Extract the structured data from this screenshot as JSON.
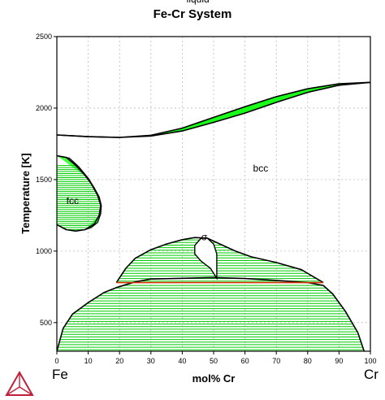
{
  "chart_data": {
    "type": "phase-diagram",
    "title": "Fe-Cr System",
    "xlabel": "mol% Cr",
    "ylabel": "Temperature [K]",
    "xlim": [
      0,
      100
    ],
    "ylim": [
      300,
      2500
    ],
    "x_ticks": [
      "0",
      "10",
      "20",
      "30",
      "40",
      "50",
      "60",
      "70",
      "80",
      "90",
      "100"
    ],
    "y_ticks": [
      "500",
      "1000",
      "1500",
      "2000",
      "2500"
    ],
    "x_tick_values": [
      0,
      10,
      20,
      30,
      40,
      50,
      60,
      70,
      80,
      90,
      100
    ],
    "y_tick_values": [
      500,
      1000,
      1500,
      2000,
      2500
    ],
    "grid": true,
    "end_labels": {
      "left": "Fe",
      "right": "Cr"
    },
    "colors": {
      "two_phase_fill": "#00ff00",
      "boundary": "#000000",
      "tie_line": "#00cc00",
      "eutectoid_line": "#cc3300",
      "grid": "#bbbbbb",
      "logo": "#c0203a"
    },
    "phase_labels": [
      {
        "text": "liquid",
        "x": 45,
        "y": 2740
      },
      {
        "text": "bcc",
        "x": 65,
        "y": 1555
      },
      {
        "text": "fcc",
        "x": 5,
        "y": 1330
      },
      {
        "text": "σ",
        "x": 47,
        "y": 1075
      }
    ],
    "boundaries": {
      "liquidus": [
        [
          0,
          1812
        ],
        [
          10,
          1800
        ],
        [
          20,
          1795
        ],
        [
          30,
          1810
        ],
        [
          40,
          1860
        ],
        [
          50,
          1935
        ],
        [
          60,
          2010
        ],
        [
          70,
          2080
        ],
        [
          80,
          2135
        ],
        [
          90,
          2170
        ],
        [
          100,
          2180
        ]
      ],
      "solidus": [
        [
          0,
          1812
        ],
        [
          10,
          1800
        ],
        [
          20,
          1795
        ],
        [
          30,
          1805
        ],
        [
          40,
          1840
        ],
        [
          50,
          1900
        ],
        [
          60,
          1965
        ],
        [
          70,
          2040
        ],
        [
          80,
          2110
        ],
        [
          90,
          2160
        ],
        [
          100,
          2180
        ]
      ],
      "gamma_loop_outer": [
        [
          0,
          1667
        ],
        [
          3,
          1655
        ],
        [
          6,
          1600
        ],
        [
          9,
          1530
        ],
        [
          11,
          1470
        ],
        [
          13,
          1390
        ],
        [
          14,
          1320
        ],
        [
          13.5,
          1250
        ],
        [
          12,
          1190
        ],
        [
          9,
          1150
        ],
        [
          6,
          1140
        ],
        [
          3,
          1150
        ],
        [
          0,
          1185
        ]
      ],
      "gamma_loop_inner": [
        [
          0,
          1667
        ],
        [
          4,
          1650
        ],
        [
          7,
          1590
        ],
        [
          10,
          1510
        ],
        [
          12,
          1440
        ],
        [
          13.5,
          1380
        ],
        [
          14.2,
          1320
        ],
        [
          14,
          1260
        ],
        [
          13,
          1200
        ],
        [
          11,
          1165
        ],
        [
          9,
          1150
        ]
      ],
      "miscibility_dome": [
        [
          0,
          300
        ],
        [
          2,
          460
        ],
        [
          5,
          560
        ],
        [
          10,
          640
        ],
        [
          15,
          710
        ],
        [
          19,
          745
        ],
        [
          22,
          765
        ],
        [
          25,
          785
        ],
        [
          30,
          805
        ],
        [
          40,
          810
        ],
        [
          50,
          815
        ],
        [
          60,
          808
        ],
        [
          70,
          795
        ],
        [
          80,
          780
        ],
        [
          85,
          760
        ],
        [
          88,
          700
        ],
        [
          92,
          580
        ],
        [
          96,
          430
        ],
        [
          98,
          300
        ]
      ],
      "sigma_bcc_two_phase": [
        [
          19,
          780
        ],
        [
          22,
          880
        ],
        [
          25,
          950
        ],
        [
          30,
          1010
        ],
        [
          35,
          1050
        ],
        [
          40,
          1080
        ],
        [
          44,
          1095
        ],
        [
          48,
          1090
        ],
        [
          52,
          1050
        ],
        [
          57,
          1000
        ],
        [
          62,
          960
        ],
        [
          70,
          920
        ],
        [
          78,
          870
        ],
        [
          85,
          780
        ]
      ],
      "sigma_region": [
        [
          46,
          1090
        ],
        [
          44,
          1040
        ],
        [
          44,
          980
        ],
        [
          46,
          930
        ],
        [
          49,
          880
        ],
        [
          51,
          810
        ],
        [
          51,
          900
        ],
        [
          51,
          980
        ],
        [
          50,
          1050
        ],
        [
          48,
          1090
        ]
      ],
      "eutectoid_T": 780,
      "eutectoid_x": [
        19,
        85
      ]
    }
  }
}
